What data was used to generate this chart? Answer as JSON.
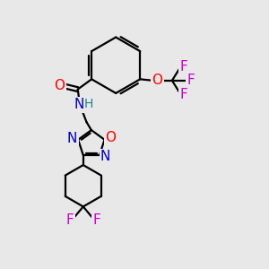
{
  "bg_color": "#e8e8e8",
  "bond_color": "#000000",
  "atom_colors": {
    "O": "#ff0000",
    "N": "#0000cc",
    "F": "#cc00cc",
    "H": "#228888",
    "C": "#000000"
  },
  "line_width": 1.6,
  "figsize": [
    3.0,
    3.0
  ],
  "dpi": 100
}
